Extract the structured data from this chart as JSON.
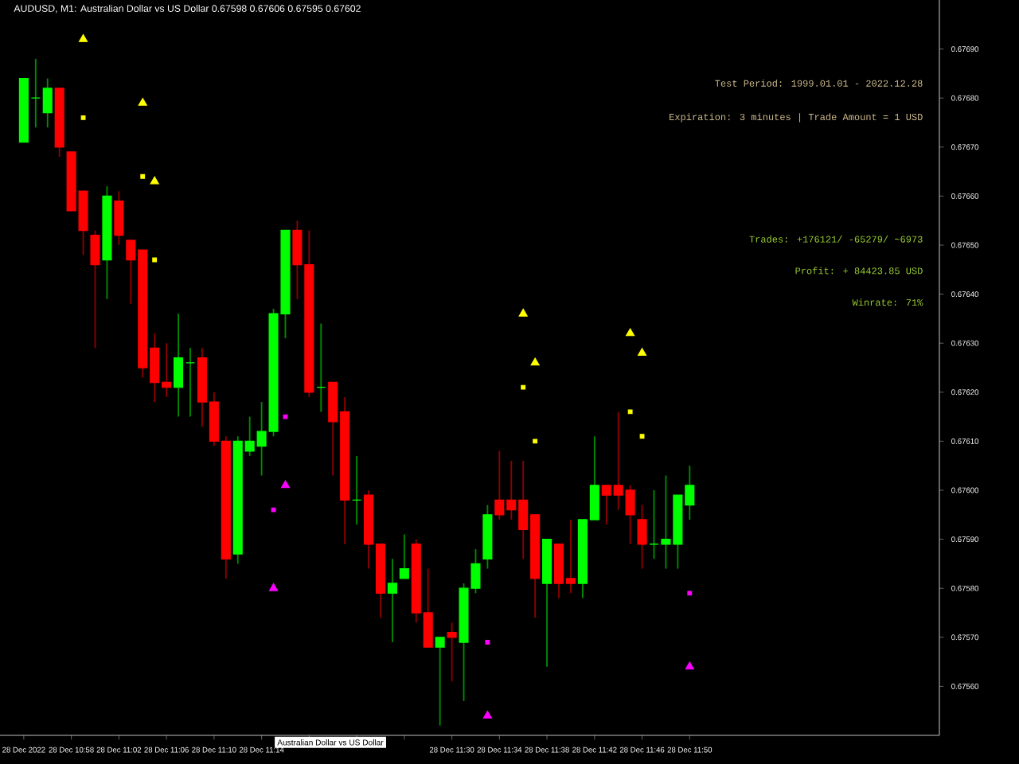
{
  "chart_data": {
    "type": "candlestick",
    "title": "AUDUSD, M1:  Australian Dollar vs US Dollar  0.67598 0.67606 0.67595 0.67602",
    "x": [
      "2022-12-28T10:54",
      "2022-12-28T10:55",
      "2022-12-28T10:56",
      "2022-12-28T10:57",
      "2022-12-28T10:58",
      "2022-12-28T10:59",
      "2022-12-28T11:00",
      "2022-12-28T11:01",
      "2022-12-28T11:02",
      "2022-12-28T11:03",
      "2022-12-28T11:04",
      "2022-12-28T11:05",
      "2022-12-28T11:06",
      "2022-12-28T11:07",
      "2022-12-28T11:08",
      "2022-12-28T11:09",
      "2022-12-28T11:10",
      "2022-12-28T11:11",
      "2022-12-28T11:12",
      "2022-12-28T11:13",
      "2022-12-28T11:14",
      "2022-12-28T11:15",
      "2022-12-28T11:16",
      "2022-12-28T11:17",
      "2022-12-28T11:18",
      "2022-12-28T11:19",
      "2022-12-28T11:20",
      "2022-12-28T11:21",
      "2022-12-28T11:22",
      "2022-12-28T11:23",
      "2022-12-28T11:24",
      "2022-12-28T11:25",
      "2022-12-28T11:26",
      "2022-12-28T11:27",
      "2022-12-28T11:28",
      "2022-12-28T11:29",
      "2022-12-28T11:30",
      "2022-12-28T11:31",
      "2022-12-28T11:32",
      "2022-12-28T11:33",
      "2022-12-28T11:34",
      "2022-12-28T11:35",
      "2022-12-28T11:36",
      "2022-12-28T11:37",
      "2022-12-28T11:38",
      "2022-12-28T11:39",
      "2022-12-28T11:40",
      "2022-12-28T11:41",
      "2022-12-28T11:42",
      "2022-12-28T11:43",
      "2022-12-28T11:44",
      "2022-12-28T11:45",
      "2022-12-28T11:46",
      "2022-12-28T11:47",
      "2022-12-28T11:48",
      "2022-12-28T11:49",
      "2022-12-28T11:50"
    ],
    "ohlc": [
      [
        0.67671,
        0.67684,
        0.67671,
        0.67684
      ],
      [
        0.6768,
        0.67688,
        0.67674,
        0.6768
      ],
      [
        0.67677,
        0.67684,
        0.67674,
        0.67682
      ],
      [
        0.67682,
        0.67682,
        0.67668,
        0.6767
      ],
      [
        0.67669,
        0.67669,
        0.67657,
        0.67657
      ],
      [
        0.67661,
        0.67661,
        0.67648,
        0.67653
      ],
      [
        0.67652,
        0.67653,
        0.67629,
        0.67646
      ],
      [
        0.67647,
        0.67662,
        0.67639,
        0.6766
      ],
      [
        0.67659,
        0.67661,
        0.6765,
        0.67652
      ],
      [
        0.67651,
        0.67651,
        0.67638,
        0.67647
      ],
      [
        0.67649,
        0.67649,
        0.67623,
        0.67625
      ],
      [
        0.67629,
        0.67632,
        0.67618,
        0.67622
      ],
      [
        0.67622,
        0.6763,
        0.67619,
        0.67621
      ],
      [
        0.67621,
        0.67636,
        0.67615,
        0.67627
      ],
      [
        0.67626,
        0.67629,
        0.67615,
        0.67626
      ],
      [
        0.67627,
        0.67629,
        0.67613,
        0.67618
      ],
      [
        0.67618,
        0.6762,
        0.67609,
        0.6761
      ],
      [
        0.6761,
        0.67611,
        0.67582,
        0.67586
      ],
      [
        0.67587,
        0.67611,
        0.67585,
        0.6761
      ],
      [
        0.67608,
        0.67615,
        0.67607,
        0.6761
      ],
      [
        0.67609,
        0.67618,
        0.67603,
        0.67612
      ],
      [
        0.67612,
        0.67637,
        0.67611,
        0.67636
      ],
      [
        0.67636,
        0.67653,
        0.67631,
        0.67653
      ],
      [
        0.67653,
        0.67655,
        0.67639,
        0.67646
      ],
      [
        0.67646,
        0.67653,
        0.67619,
        0.6762
      ],
      [
        0.67621,
        0.67634,
        0.67616,
        0.67621
      ],
      [
        0.67622,
        0.67622,
        0.67603,
        0.67614
      ],
      [
        0.67616,
        0.67619,
        0.67589,
        0.67598
      ],
      [
        0.67598,
        0.67607,
        0.67593,
        0.67598
      ],
      [
        0.67599,
        0.676,
        0.67584,
        0.67589
      ],
      [
        0.67589,
        0.67589,
        0.67574,
        0.67579
      ],
      [
        0.67579,
        0.67586,
        0.67569,
        0.67581
      ],
      [
        0.67582,
        0.67591,
        0.67582,
        0.67584
      ],
      [
        0.67589,
        0.6759,
        0.67573,
        0.67575
      ],
      [
        0.67575,
        0.67584,
        0.67568,
        0.67568
      ],
      [
        0.67568,
        0.6757,
        0.67552,
        0.6757
      ],
      [
        0.67571,
        0.67573,
        0.67561,
        0.6757
      ],
      [
        0.67569,
        0.67581,
        0.67557,
        0.6758
      ],
      [
        0.6758,
        0.67588,
        0.67579,
        0.67585
      ],
      [
        0.67586,
        0.67597,
        0.67584,
        0.67595
      ],
      [
        0.67598,
        0.67608,
        0.67594,
        0.67595
      ],
      [
        0.67598,
        0.67606,
        0.67594,
        0.67596
      ],
      [
        0.67598,
        0.67606,
        0.67586,
        0.67592
      ],
      [
        0.67595,
        0.67595,
        0.67574,
        0.67582
      ],
      [
        0.67581,
        0.6759,
        0.67564,
        0.6759
      ],
      [
        0.67589,
        0.67589,
        0.67578,
        0.67581
      ],
      [
        0.67582,
        0.67594,
        0.67579,
        0.67581
      ],
      [
        0.67581,
        0.67594,
        0.67578,
        0.67594
      ],
      [
        0.67594,
        0.67611,
        0.67594,
        0.67601
      ],
      [
        0.67601,
        0.67601,
        0.67593,
        0.67599
      ],
      [
        0.67601,
        0.67616,
        0.67596,
        0.67599
      ],
      [
        0.676,
        0.67601,
        0.67589,
        0.67595
      ],
      [
        0.67594,
        0.67597,
        0.67584,
        0.67589
      ],
      [
        0.67589,
        0.676,
        0.67586,
        0.67589
      ],
      [
        0.67589,
        0.67603,
        0.67584,
        0.6759
      ],
      [
        0.67589,
        0.67599,
        0.67584,
        0.67599
      ],
      [
        0.67597,
        0.67605,
        0.67594,
        0.67601
      ]
    ],
    "colors": [
      "#00ff00",
      "#00ff00",
      "#00ff00",
      "#ff0000",
      "#ff0000",
      "#ff0000",
      "#ff0000",
      "#00ff00",
      "#ff0000",
      "#ff0000",
      "#ff0000",
      "#ff0000",
      "#ff0000",
      "#00ff00",
      "#00ff00",
      "#ff0000",
      "#ff0000",
      "#ff0000",
      "#00ff00",
      "#00ff00",
      "#00ff00",
      "#00ff00",
      "#00ff00",
      "#ff0000",
      "#ff0000",
      "#00ff00",
      "#ff0000",
      "#ff0000",
      "#00ff00",
      "#ff0000",
      "#ff0000",
      "#00ff00",
      "#00ff00",
      "#ff0000",
      "#ff0000",
      "#00ff00",
      "#ff0000",
      "#00ff00",
      "#00ff00",
      "#00ff00",
      "#ff0000",
      "#ff0000",
      "#ff0000",
      "#ff0000",
      "#00ff00",
      "#ff0000",
      "#ff0000",
      "#00ff00",
      "#00ff00",
      "#ff0000",
      "#ff0000",
      "#ff0000",
      "#ff0000",
      "#00ff00",
      "#00ff00",
      "#00ff00",
      "#00ff00"
    ],
    "series": [
      {
        "type": "scatter",
        "color": "#ffff00",
        "marker": "triangle",
        "x": [
          "2022-12-28T10:59",
          "2022-12-28T11:04",
          "2022-12-28T11:05",
          "2022-12-28T11:36",
          "2022-12-28T11:37",
          "2022-12-28T11:45",
          "2022-12-28T11:46"
        ],
        "values": [
          0.67692,
          0.67679,
          0.67663,
          0.67636,
          0.67626,
          0.67632,
          0.67628
        ]
      },
      {
        "type": "scatter",
        "color": "#ffff00",
        "marker": "square",
        "x": [
          "2022-12-28T10:59",
          "2022-12-28T11:04",
          "2022-12-28T11:05",
          "2022-12-28T11:36",
          "2022-12-28T11:37",
          "2022-12-28T11:45",
          "2022-12-28T11:46"
        ],
        "values": [
          0.67676,
          0.67664,
          0.67647,
          0.67621,
          0.6761,
          0.67616,
          0.67611
        ]
      },
      {
        "type": "scatter",
        "color": "#ff00ff",
        "marker": "triangle",
        "x": [
          "2022-12-28T11:15",
          "2022-12-28T11:16",
          "2022-12-28T11:33",
          "2022-12-28T11:50"
        ],
        "values": [
          0.6758,
          0.67601,
          0.67554,
          0.67564
        ]
      },
      {
        "type": "scatter",
        "color": "#ff00ff",
        "marker": "square",
        "x": [
          "2022-12-28T11:15",
          "2022-12-28T11:16",
          "2022-12-28T11:33",
          "2022-12-28T11:50"
        ],
        "values": [
          0.67596,
          0.67615,
          0.67569,
          0.67579
        ]
      }
    ],
    "xlim": [
      "2022-12-28T10:52",
      "2022-12-28T12:11"
    ],
    "xticks": [
      {
        "value": "2022-12-28T10:54",
        "label": "28 Dec 2022"
      },
      {
        "value": "2022-12-28T10:58",
        "label": "28 Dec 10:58"
      },
      {
        "value": "2022-12-28T11:02",
        "label": "28 Dec 11:02"
      },
      {
        "value": "2022-12-28T11:06",
        "label": "28 Dec 11:06"
      },
      {
        "value": "2022-12-28T11:10",
        "label": "28 Dec 11:10"
      },
      {
        "value": "2022-12-28T11:14",
        "label": "28 Dec 11:14"
      },
      {
        "value": "2022-12-28T11:18",
        "label": null
      },
      {
        "value": "2022-12-28T11:22",
        "label": null
      },
      {
        "value": "2022-12-28T11:26",
        "label": null
      },
      {
        "value": "2022-12-28T11:30",
        "label": "28 Dec 11:30"
      },
      {
        "value": "2022-12-28T11:34",
        "label": "28 Dec 11:34"
      },
      {
        "value": "2022-12-28T11:38",
        "label": "28 Dec 11:38"
      },
      {
        "value": "2022-12-28T11:42",
        "label": "28 Dec 11:42"
      },
      {
        "value": "2022-12-28T11:46",
        "label": "28 Dec 11:46"
      },
      {
        "value": "2022-12-28T11:50",
        "label": "28 Dec 11:50"
      }
    ],
    "ylim": [
      0.6755,
      0.677
    ],
    "yticks": [
      {
        "value": 0.6756,
        "label": "0.67560"
      },
      {
        "value": 0.6757,
        "label": "0.67570"
      },
      {
        "value": 0.6758,
        "label": "0.67580"
      },
      {
        "value": 0.6759,
        "label": "0.67590"
      },
      {
        "value": 0.676,
        "label": "0.67600"
      },
      {
        "value": 0.6761,
        "label": "0.67610"
      },
      {
        "value": 0.6762,
        "label": "0.67620"
      },
      {
        "value": 0.6763,
        "label": "0.67630"
      },
      {
        "value": 0.6764,
        "label": "0.67640"
      },
      {
        "value": 0.6765,
        "label": "0.67650"
      },
      {
        "value": 0.6766,
        "label": "0.67660"
      },
      {
        "value": 0.6767,
        "label": "0.67670"
      },
      {
        "value": 0.6768,
        "label": "0.67680"
      },
      {
        "value": 0.6769,
        "label": "0.67690"
      }
    ],
    "annotations": [
      "Test Period: 1999.01.01 - 2022.12.28",
      "Expiration: 3 minutes | Trade Amount = 1 USD",
      "Trades: +176121/ -65279/ ~6973",
      "Profit: + 84423.85 USD",
      "Winrate: 71%",
      "Australian Dollar vs US Dollar"
    ]
  }
}
